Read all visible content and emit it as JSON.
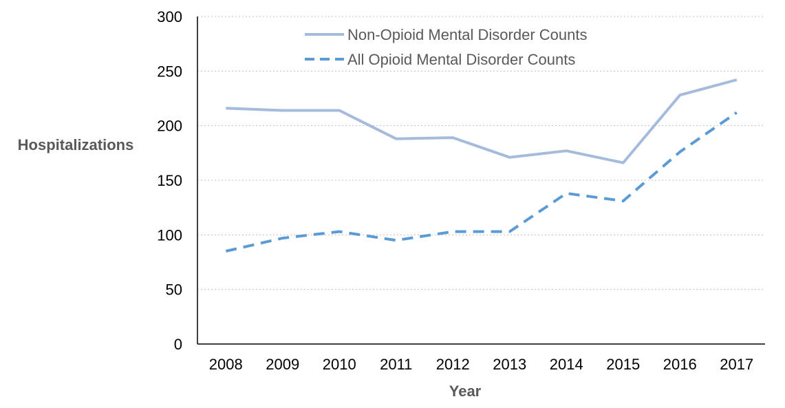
{
  "chart_data": {
    "type": "line",
    "title": "",
    "xlabel": "Year",
    "ylabel": "Hospitalizations",
    "categories": [
      "2008",
      "2009",
      "2010",
      "2011",
      "2012",
      "2013",
      "2014",
      "2015",
      "2016",
      "2017"
    ],
    "ylim": [
      0,
      300
    ],
    "yticks": [
      0,
      50,
      100,
      150,
      200,
      250,
      300
    ],
    "grid": "horizontal dotted",
    "legend_position": "top",
    "series": [
      {
        "name": "Non-Opioid Mental Disorder Counts",
        "values": [
          216,
          214,
          214,
          188,
          189,
          171,
          177,
          166,
          228,
          242
        ],
        "color": "#A5BBDB",
        "style": "solid"
      },
      {
        "name": "All Opioid Mental Disorder Counts",
        "values": [
          85,
          97,
          103,
          95,
          103,
          103,
          138,
          131,
          176,
          212
        ],
        "color": "#5B9BD5",
        "style": "dashed"
      }
    ]
  }
}
